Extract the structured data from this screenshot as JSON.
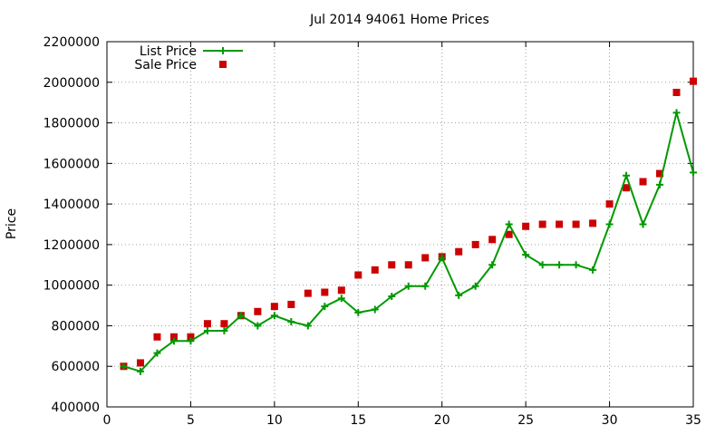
{
  "chart_data": {
    "type": "line",
    "title": "Jul 2014 94061 Home Prices",
    "xlabel": "",
    "ylabel": "Price",
    "xlim": [
      0,
      35
    ],
    "ylim": [
      400000,
      2200000
    ],
    "xticks": [
      "0",
      "5",
      "10",
      "15",
      "20",
      "25",
      "30",
      "35"
    ],
    "yticks": [
      "400000",
      "600000",
      "800000",
      "1000000",
      "1200000",
      "1400000",
      "1600000",
      "1800000",
      "2000000",
      "2200000"
    ],
    "grid": true,
    "legend_position": "top-left",
    "series": [
      {
        "name": "List Price",
        "style": "line-plus",
        "color": "#009900",
        "x": [
          1,
          2,
          3,
          4,
          5,
          6,
          7,
          8,
          9,
          10,
          11,
          12,
          13,
          14,
          15,
          16,
          17,
          18,
          19,
          20,
          21,
          22,
          23,
          24,
          25,
          26,
          27,
          28,
          29,
          30,
          31,
          32,
          33,
          34,
          35
        ],
        "y": [
          600000,
          575000,
          665000,
          725000,
          725000,
          775000,
          775000,
          850000,
          800000,
          850000,
          820000,
          800000,
          895000,
          935000,
          865000,
          880000,
          945000,
          995000,
          995000,
          1135000,
          950000,
          995000,
          1100000,
          1300000,
          1150000,
          1100000,
          1100000,
          1100000,
          1075000,
          1300000,
          1540000,
          1300000,
          1495000,
          1850000,
          1555000
        ]
      },
      {
        "name": "Sale Price",
        "style": "square-markers",
        "color": "#cc0000",
        "x": [
          1,
          2,
          3,
          4,
          5,
          6,
          7,
          8,
          9,
          10,
          11,
          12,
          13,
          14,
          15,
          16,
          17,
          18,
          19,
          20,
          21,
          22,
          23,
          24,
          25,
          26,
          27,
          28,
          29,
          30,
          31,
          32,
          33,
          34,
          35
        ],
        "y": [
          600000,
          617000,
          745000,
          745000,
          745000,
          810000,
          810000,
          850000,
          870000,
          895000,
          905000,
          960000,
          965000,
          975000,
          1050000,
          1075000,
          1100000,
          1100000,
          1135000,
          1140000,
          1165000,
          1200000,
          1225000,
          1250000,
          1290000,
          1300000,
          1300000,
          1300000,
          1305000,
          1400000,
          1480000,
          1510000,
          1550000,
          1950000,
          2005000
        ]
      }
    ]
  }
}
